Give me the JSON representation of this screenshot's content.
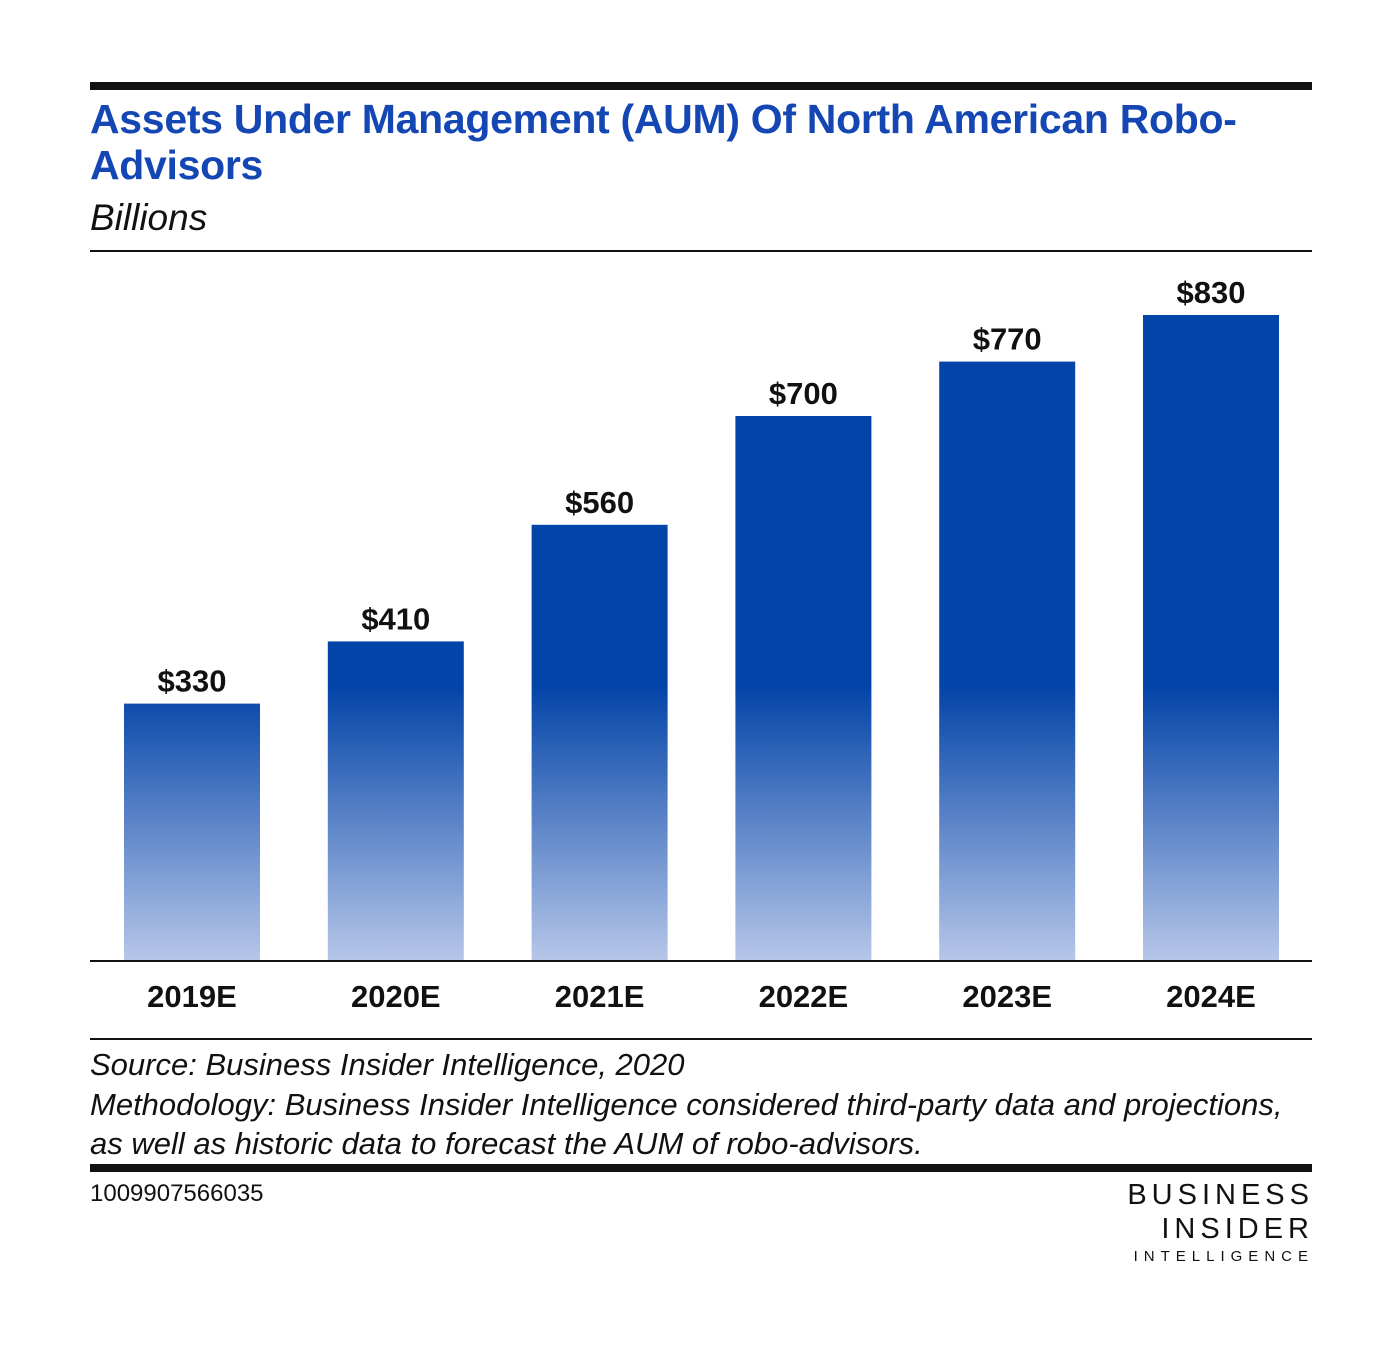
{
  "header": {
    "title": "Assets Under Management (AUM) Of North American Robo-Advisors",
    "subtitle": "Billions"
  },
  "chart_data": {
    "type": "bar",
    "title": "Assets Under Management (AUM) Of North American Robo-Advisors",
    "subtitle": "Billions",
    "categories": [
      "2019E",
      "2020E",
      "2021E",
      "2022E",
      "2023E",
      "2024E"
    ],
    "values": [
      330,
      410,
      560,
      700,
      770,
      830
    ],
    "value_labels": [
      "$330",
      "$410",
      "$560",
      "$700",
      "$770",
      "$830"
    ],
    "xlabel": "",
    "ylabel": "",
    "ylim": [
      0,
      830
    ],
    "grid": false,
    "legend": "none",
    "bar_color": "#0344a8",
    "bar_fade_color": "#b6c6e8"
  },
  "footer": {
    "source": "Source: Business Insider Intelligence, 2020",
    "methodology": "Methodology: Business Insider Intelligence considered third-party data and projections, as well as historic data to forecast the AUM of robo-advisors.",
    "chart_id": "1009907566035",
    "logo_line1": "BUSINESS",
    "logo_line2": "INSIDER",
    "logo_line3": "INTELLIGENCE"
  }
}
